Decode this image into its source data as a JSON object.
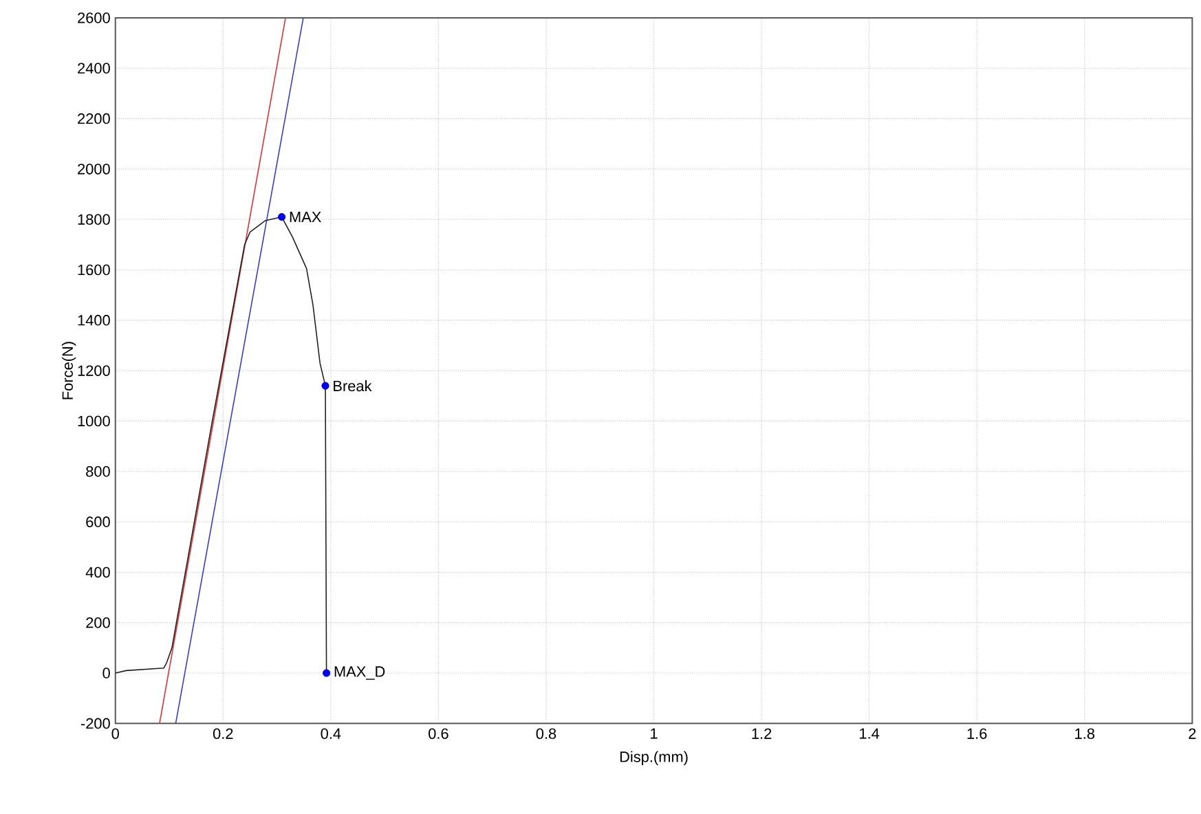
{
  "chart_data": {
    "type": "line",
    "xlabel": "Disp.(mm)",
    "ylabel": "Force(N)",
    "xlim": [
      0,
      2
    ],
    "ylim": [
      -200,
      2600
    ],
    "xticks": [
      0,
      0.2,
      0.4,
      0.6,
      0.8,
      1,
      1.2,
      1.4,
      1.6,
      1.8,
      2
    ],
    "yticks": [
      -200,
      0,
      200,
      400,
      600,
      800,
      1000,
      1200,
      1400,
      1600,
      1800,
      2000,
      2200,
      2400,
      2600
    ],
    "grid": true,
    "marker": "none",
    "line_style": "solid",
    "series": [
      {
        "color": "#e03030",
        "x": [
          0.082,
          0.316
        ],
        "values": [
          -200,
          2600
        ]
      },
      {
        "color": "#3a3ad0",
        "x": [
          0.112,
          0.349
        ],
        "values": [
          -200,
          2600
        ]
      },
      {
        "color": "#202020",
        "x": [
          0,
          0.02,
          0.09,
          0.095,
          0.105,
          0.18,
          0.24,
          0.25,
          0.278,
          0.309,
          0.329,
          0.355,
          0.367,
          0.38,
          0.39,
          0.392
        ],
        "values": [
          0,
          10,
          20,
          40,
          100,
          1000,
          1700,
          1750,
          1795,
          1810,
          1730,
          1605,
          1460,
          1230,
          1140,
          0
        ]
      },
      {
        "type": "scatter",
        "marker": "circle",
        "color": "#0000ee",
        "x": [
          0.309,
          0.39,
          0.392
        ],
        "values": [
          1810,
          1140,
          0
        ]
      }
    ],
    "annotations": [
      {
        "text": "MAX",
        "x": 0.309,
        "y": 1810
      },
      {
        "text": "Break",
        "x": 0.39,
        "y": 1140
      },
      {
        "text": "MAX_D",
        "x": 0.392,
        "y": 0
      }
    ]
  }
}
